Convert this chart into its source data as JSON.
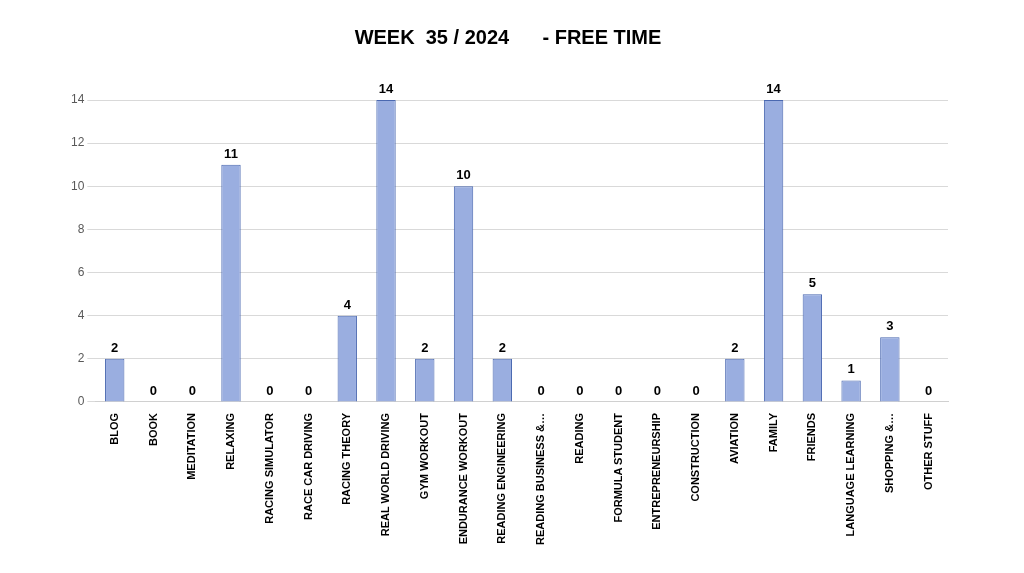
{
  "chart_data": {
    "type": "bar",
    "title": "WEEK  35 / 2024      - FREE TIME",
    "categories": [
      "BLOG",
      "BOOK",
      "MEDITATION",
      "RELAXING",
      "RACING SIMULATOR",
      "RACE CAR DRIVING",
      "RACING THEORY",
      "REAL WORLD DRIVING",
      "GYM WORKOUT",
      "ENDURANCE WORKOUT",
      "READING ENGINEERING",
      "READING BUSINESS &…",
      "READING",
      "FORMULA STUDENT",
      "ENTREPRENEURSHIP",
      "CONSTRUCTION",
      "AVIATION",
      "FAMILY",
      "FRIENDS",
      "LANGUAGE LEARNING",
      "SHOPPING &…",
      "OTHER STUFF"
    ],
    "values": [
      2,
      0,
      0,
      11,
      0,
      0,
      4,
      14,
      2,
      10,
      2,
      0,
      0,
      0,
      0,
      0,
      2,
      14,
      5,
      1,
      3,
      0
    ],
    "color": "#9aaee0",
    "ylim": [
      0,
      14
    ],
    "yticks": [
      0,
      2,
      4,
      6,
      8,
      10,
      12,
      14
    ],
    "grid": "y",
    "data_labels": true,
    "legend": false
  }
}
